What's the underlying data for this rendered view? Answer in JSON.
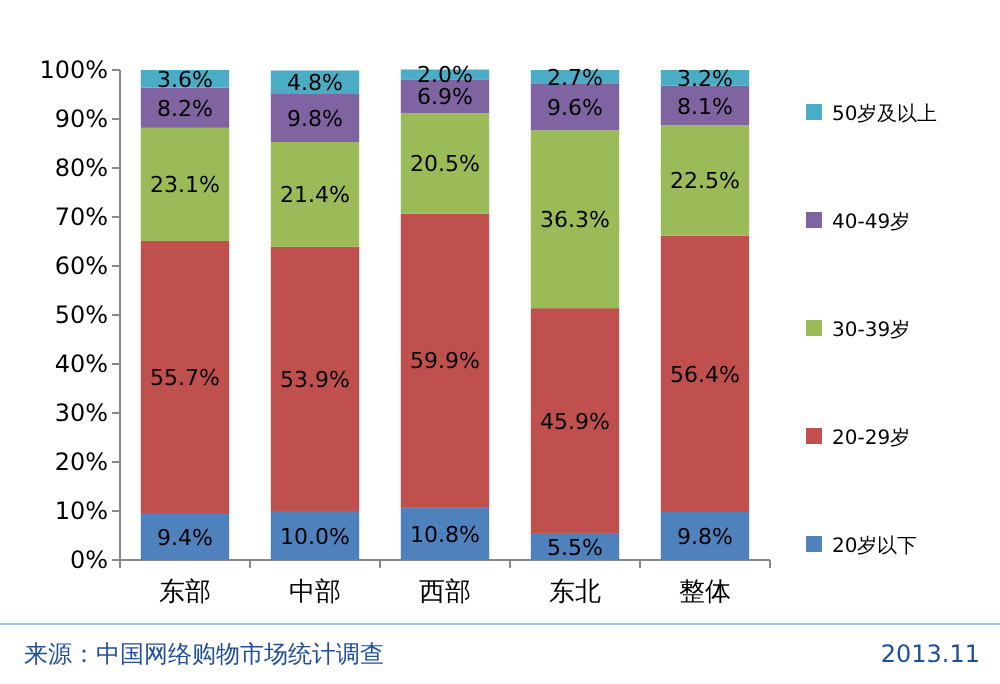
{
  "chart_data": {
    "type": "bar",
    "stacked": true,
    "categories": [
      "东部",
      "中部",
      "西部",
      "东北",
      "整体"
    ],
    "series": [
      {
        "name": "20岁以下",
        "color": "#4f81bd",
        "values": [
          9.4,
          10.0,
          10.8,
          5.5,
          9.8
        ],
        "value_labels": [
          "9.4%",
          "10.0%",
          "10.8%",
          "5.5%",
          "9.8%"
        ]
      },
      {
        "name": "20-29岁",
        "color": "#c0504d",
        "values": [
          55.7,
          53.9,
          59.9,
          45.9,
          56.4
        ],
        "value_labels": [
          "55.7%",
          "53.9%",
          "59.9%",
          "45.9%",
          "56.4%"
        ]
      },
      {
        "name": "30-39岁",
        "color": "#9bbb59",
        "values": [
          23.1,
          21.4,
          20.5,
          36.3,
          22.5
        ],
        "value_labels": [
          "23.1%",
          "21.4%",
          "20.5%",
          "36.3%",
          "22.5%"
        ]
      },
      {
        "name": "40-49岁",
        "color": "#8064a2",
        "values": [
          8.2,
          9.8,
          6.9,
          9.6,
          8.1
        ],
        "value_labels": [
          "8.2%",
          "9.8%",
          "6.9%",
          "9.6%",
          "8.1%"
        ]
      },
      {
        "name": "50岁及以上",
        "color": "#4bacc6",
        "values": [
          3.6,
          4.8,
          2.0,
          2.7,
          3.2
        ],
        "value_labels": [
          "3.6%",
          "4.8%",
          "2.0%",
          "2.7%",
          "3.2%"
        ]
      }
    ],
    "ylim": [
      0,
      100
    ],
    "yticks": [
      {
        "value": 0,
        "label": "0%"
      },
      {
        "value": 10,
        "label": "10%"
      },
      {
        "value": 20,
        "label": "20%"
      },
      {
        "value": 30,
        "label": "30%"
      },
      {
        "value": 40,
        "label": "40%"
      },
      {
        "value": 50,
        "label": "50%"
      },
      {
        "value": 60,
        "label": "60%"
      },
      {
        "value": 70,
        "label": "70%"
      },
      {
        "value": 80,
        "label": "80%"
      },
      {
        "value": 90,
        "label": "90%"
      },
      {
        "value": 100,
        "label": "100%"
      }
    ],
    "grid": false,
    "legend": "right",
    "annotations": [
      "来源：中国网络购物市场统计调查",
      "2013.11"
    ]
  }
}
